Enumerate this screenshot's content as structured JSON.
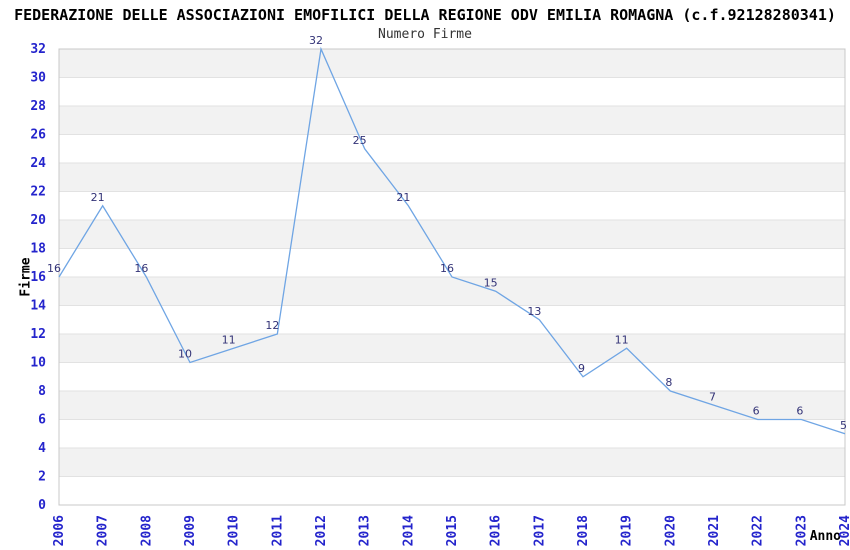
{
  "chart_data": {
    "type": "line",
    "title": "FEDERAZIONE DELLE ASSOCIAZIONI EMOFILICI DELLA REGIONE ODV EMILIA ROMAGNA (c.f.92128280341)",
    "subtitle": "Numero Firme",
    "categories": [
      "2006",
      "2007",
      "2008",
      "2009",
      "2010",
      "2011",
      "2012",
      "2013",
      "2014",
      "2015",
      "2016",
      "2017",
      "2018",
      "2019",
      "2020",
      "2021",
      "2022",
      "2023",
      "2024"
    ],
    "series": [
      {
        "name": "Numero Firme",
        "values": [
          16,
          21,
          16,
          10,
          11,
          12,
          32,
          25,
          21,
          16,
          15,
          13,
          9,
          11,
          8,
          7,
          6,
          6,
          5
        ]
      }
    ],
    "xlabel": "Anno",
    "ylabel": "Firme",
    "ylim": [
      0,
      32
    ],
    "ytick_step": 2,
    "yticks": [
      0,
      2,
      4,
      6,
      8,
      10,
      12,
      14,
      16,
      18,
      20,
      22,
      24,
      26,
      28,
      30,
      32
    ],
    "grid": true,
    "data_labels": true,
    "legend": "none",
    "colors": {
      "line": "#6FA5E4",
      "data_label": "#333377",
      "tick_label": "#2424CC",
      "band": "#F2F2F2",
      "grid_line": "#E2E2E2",
      "frame": "#C8C8C8",
      "title": "#000000",
      "subtitle": "#333333",
      "axis_title": "#000000"
    }
  }
}
